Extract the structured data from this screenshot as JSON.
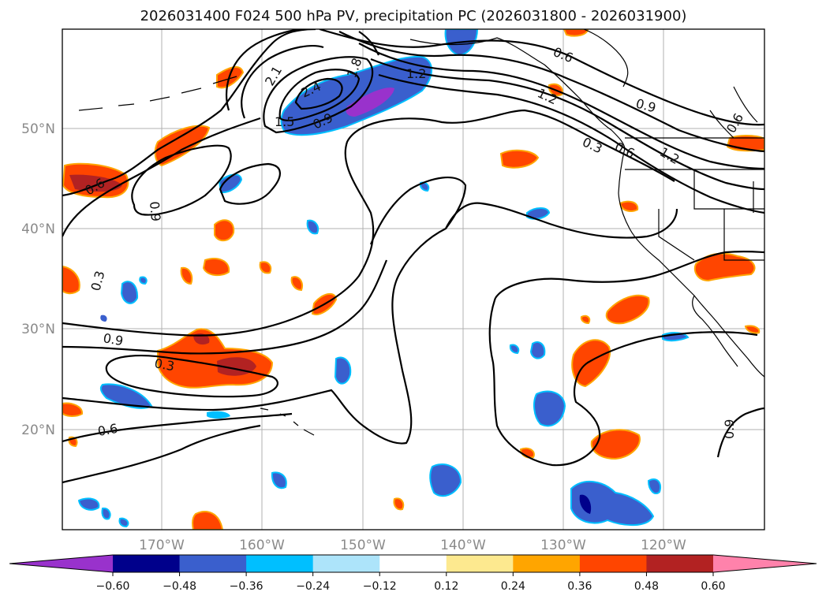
{
  "title": "2026031400 F024 500 hPa PV, precipitation PC (2026031800 - 2026031900)",
  "lat_labels": [
    "50°N",
    "40°N",
    "30°N",
    "20°N"
  ],
  "lon_labels": [
    "170°W",
    "160°W",
    "150°W",
    "140°W",
    "130°W",
    "120°W"
  ],
  "contour_labels": [
    "0.6",
    "0.9",
    "1.2",
    "1.5",
    "2.1",
    "2.4",
    "1.8",
    "0.9",
    "1.2",
    "0.6",
    "0.3",
    "0.6",
    "1.2",
    "0.9",
    "0.6",
    "0.3",
    "0.9",
    "0.3",
    "0.6",
    "0.9",
    "0.3",
    "0.3"
  ],
  "colorbar": {
    "colors": [
      "#9932cc",
      "#00008b",
      "#3a5fcd",
      "#00bfff",
      "#ade4fa",
      "#ffffff",
      "#fde98f",
      "#ffa500",
      "#ff4500",
      "#b22222",
      "#ff82ab"
    ],
    "tick_labels": [
      "−0.60",
      "−0.48",
      "−0.36",
      "−0.24",
      "−0.12",
      "0.12",
      "0.24",
      "0.36",
      "0.48",
      "0.60"
    ]
  }
}
